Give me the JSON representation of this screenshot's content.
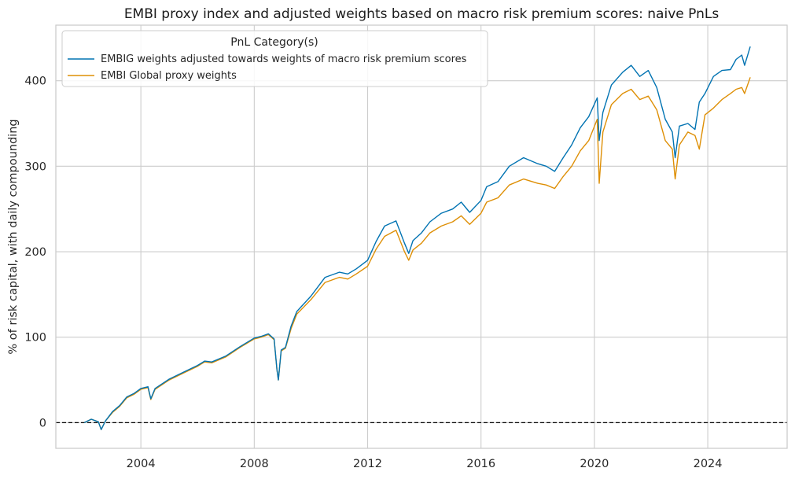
{
  "chart_data": {
    "type": "line",
    "title": "EMBI proxy index and adjusted weights based on macro risk premium scores: naive PnLs",
    "xlabel": "",
    "ylabel": "% of risk capital, with daily compounding",
    "x_tick_labels": [
      "2004",
      "2008",
      "2012",
      "2016",
      "2020",
      "2024"
    ],
    "x_ticks": [
      2004,
      2008,
      2012,
      2016,
      2020,
      2024
    ],
    "y_ticks": [
      0,
      100,
      200,
      300,
      400
    ],
    "xlim": [
      2001.0,
      2026.8
    ],
    "ylim": [
      -30,
      465
    ],
    "grid": true,
    "zero_line": true,
    "legend": {
      "title": "PnL Category(s)",
      "placement": "top-left"
    },
    "x": [
      2002.0,
      2002.25,
      2002.5,
      2002.6,
      2002.75,
      2003.0,
      2003.25,
      2003.5,
      2003.75,
      2004.0,
      2004.25,
      2004.35,
      2004.5,
      2005.0,
      2005.5,
      2006.0,
      2006.25,
      2006.5,
      2007.0,
      2007.5,
      2008.0,
      2008.25,
      2008.5,
      2008.7,
      2008.8,
      2008.85,
      2008.95,
      2009.1,
      2009.3,
      2009.5,
      2010.0,
      2010.5,
      2011.0,
      2011.3,
      2011.6,
      2012.0,
      2012.3,
      2012.6,
      2013.0,
      2013.3,
      2013.45,
      2013.6,
      2013.9,
      2014.2,
      2014.6,
      2015.0,
      2015.3,
      2015.6,
      2016.0,
      2016.2,
      2016.6,
      2017.0,
      2017.5,
      2018.0,
      2018.3,
      2018.6,
      2018.9,
      2019.2,
      2019.5,
      2019.8,
      2020.1,
      2020.17,
      2020.3,
      2020.6,
      2021.0,
      2021.3,
      2021.6,
      2021.9,
      2022.2,
      2022.5,
      2022.75,
      2022.85,
      2023.0,
      2023.3,
      2023.55,
      2023.7,
      2023.9,
      2024.2,
      2024.5,
      2024.8,
      2025.0,
      2025.2,
      2025.3,
      2025.5
    ],
    "series": [
      {
        "name": "EMBIG weights adjusted towards weights of macro risk premium scores",
        "color": "#0173b2",
        "values": [
          0,
          4,
          1,
          -8,
          2,
          13,
          20,
          30,
          34,
          40,
          42,
          28,
          40,
          51,
          59,
          67,
          72,
          71,
          78,
          89,
          99,
          101,
          104,
          98,
          62,
          50,
          85,
          88,
          113,
          130,
          148,
          170,
          176,
          174,
          180,
          190,
          212,
          230,
          236,
          210,
          198,
          213,
          222,
          235,
          245,
          250,
          258,
          246,
          260,
          276,
          282,
          300,
          310,
          303,
          300,
          294,
          310,
          325,
          345,
          358,
          380,
          330,
          363,
          395,
          410,
          418,
          405,
          412,
          392,
          355,
          340,
          310,
          347,
          350,
          343,
          375,
          385,
          405,
          412,
          413,
          425,
          430,
          418,
          440
        ]
      },
      {
        "name": "EMBI Global proxy weights",
        "color": "#de8f05",
        "values": [
          0,
          4,
          1,
          -8,
          2,
          12,
          19,
          29,
          33,
          39,
          41,
          27,
          39,
          50,
          58,
          66,
          71,
          70,
          77,
          88,
          98,
          100,
          103,
          97,
          62,
          50,
          84,
          87,
          110,
          127,
          144,
          164,
          170,
          168,
          174,
          183,
          203,
          218,
          225,
          200,
          190,
          202,
          210,
          222,
          230,
          235,
          242,
          232,
          245,
          258,
          263,
          278,
          285,
          280,
          278,
          274,
          288,
          300,
          318,
          330,
          355,
          280,
          340,
          372,
          385,
          390,
          378,
          382,
          366,
          330,
          320,
          285,
          325,
          340,
          336,
          320,
          360,
          368,
          378,
          385,
          390,
          392,
          385,
          404
        ]
      }
    ]
  }
}
